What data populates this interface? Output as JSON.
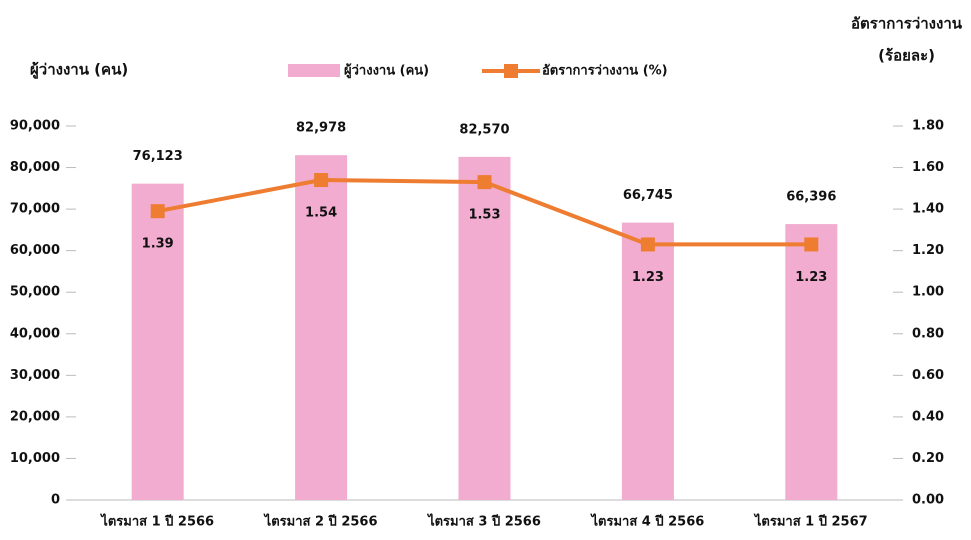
{
  "chart_data": {
    "type": "bar_line",
    "ylabel": "ผู้ว่างงาน (คน)",
    "y2label": [
      "อัตราการว่างงาน",
      "(ร้อยละ)"
    ],
    "categories": [
      "ไตรมาส 1 ปี 2566",
      "ไตรมาส 2 ปี 2566",
      "ไตรมาส 3 ปี 2566",
      "ไตรมาส 4 ปี 2566",
      "ไตรมาส 1  ปี 2567"
    ],
    "series": [
      {
        "name": "ผู้ว่างงาน (คน)",
        "type": "bar",
        "color": "#f2acd0",
        "values": [
          76123,
          82978,
          82570,
          66745,
          66396
        ],
        "value_labels": [
          "76,123",
          "82,978",
          "82,570",
          "66,745",
          "66,396"
        ]
      },
      {
        "name": "อัตราการว่างงาน (%)",
        "type": "line",
        "axis": "y2",
        "color": "#ee7d31",
        "values": [
          1.39,
          1.54,
          1.53,
          1.23,
          1.23
        ]
      }
    ],
    "ylim": [
      0,
      90000
    ],
    "yticks": [
      0,
      {
        "value": 10000,
        "label": "10,000"
      },
      {
        "value": 20000,
        "label": "20,000"
      },
      {
        "value": 30000,
        "label": "30,000"
      },
      {
        "value": 40000,
        "label": "40,000"
      },
      {
        "value": 50000,
        "label": "50,000"
      },
      {
        "value": 60000,
        "label": "60,000"
      },
      {
        "value": 70000,
        "label": "70,000"
      },
      {
        "value": 80000,
        "label": "80,000"
      },
      {
        "value": 90000,
        "label": "90,000"
      }
    ],
    "y2lim": [
      0,
      1.8
    ],
    "y2ticks": [
      {
        "value": 0,
        "label": "0.00"
      },
      {
        "value": 0.2,
        "label": "0.20"
      },
      {
        "value": 0.4,
        "label": "0.40"
      },
      {
        "value": 0.6,
        "label": "0.60"
      },
      {
        "value": 0.8,
        "label": "0.80"
      },
      {
        "value": 1,
        "label": "1.00"
      },
      {
        "value": 1.2,
        "label": "1.20"
      },
      {
        "value": 1.4,
        "label": "1.40"
      },
      {
        "value": 1.6,
        "label": "1.60"
      },
      {
        "value": 1.8,
        "label": "1.80"
      }
    ],
    "grid": false
  }
}
